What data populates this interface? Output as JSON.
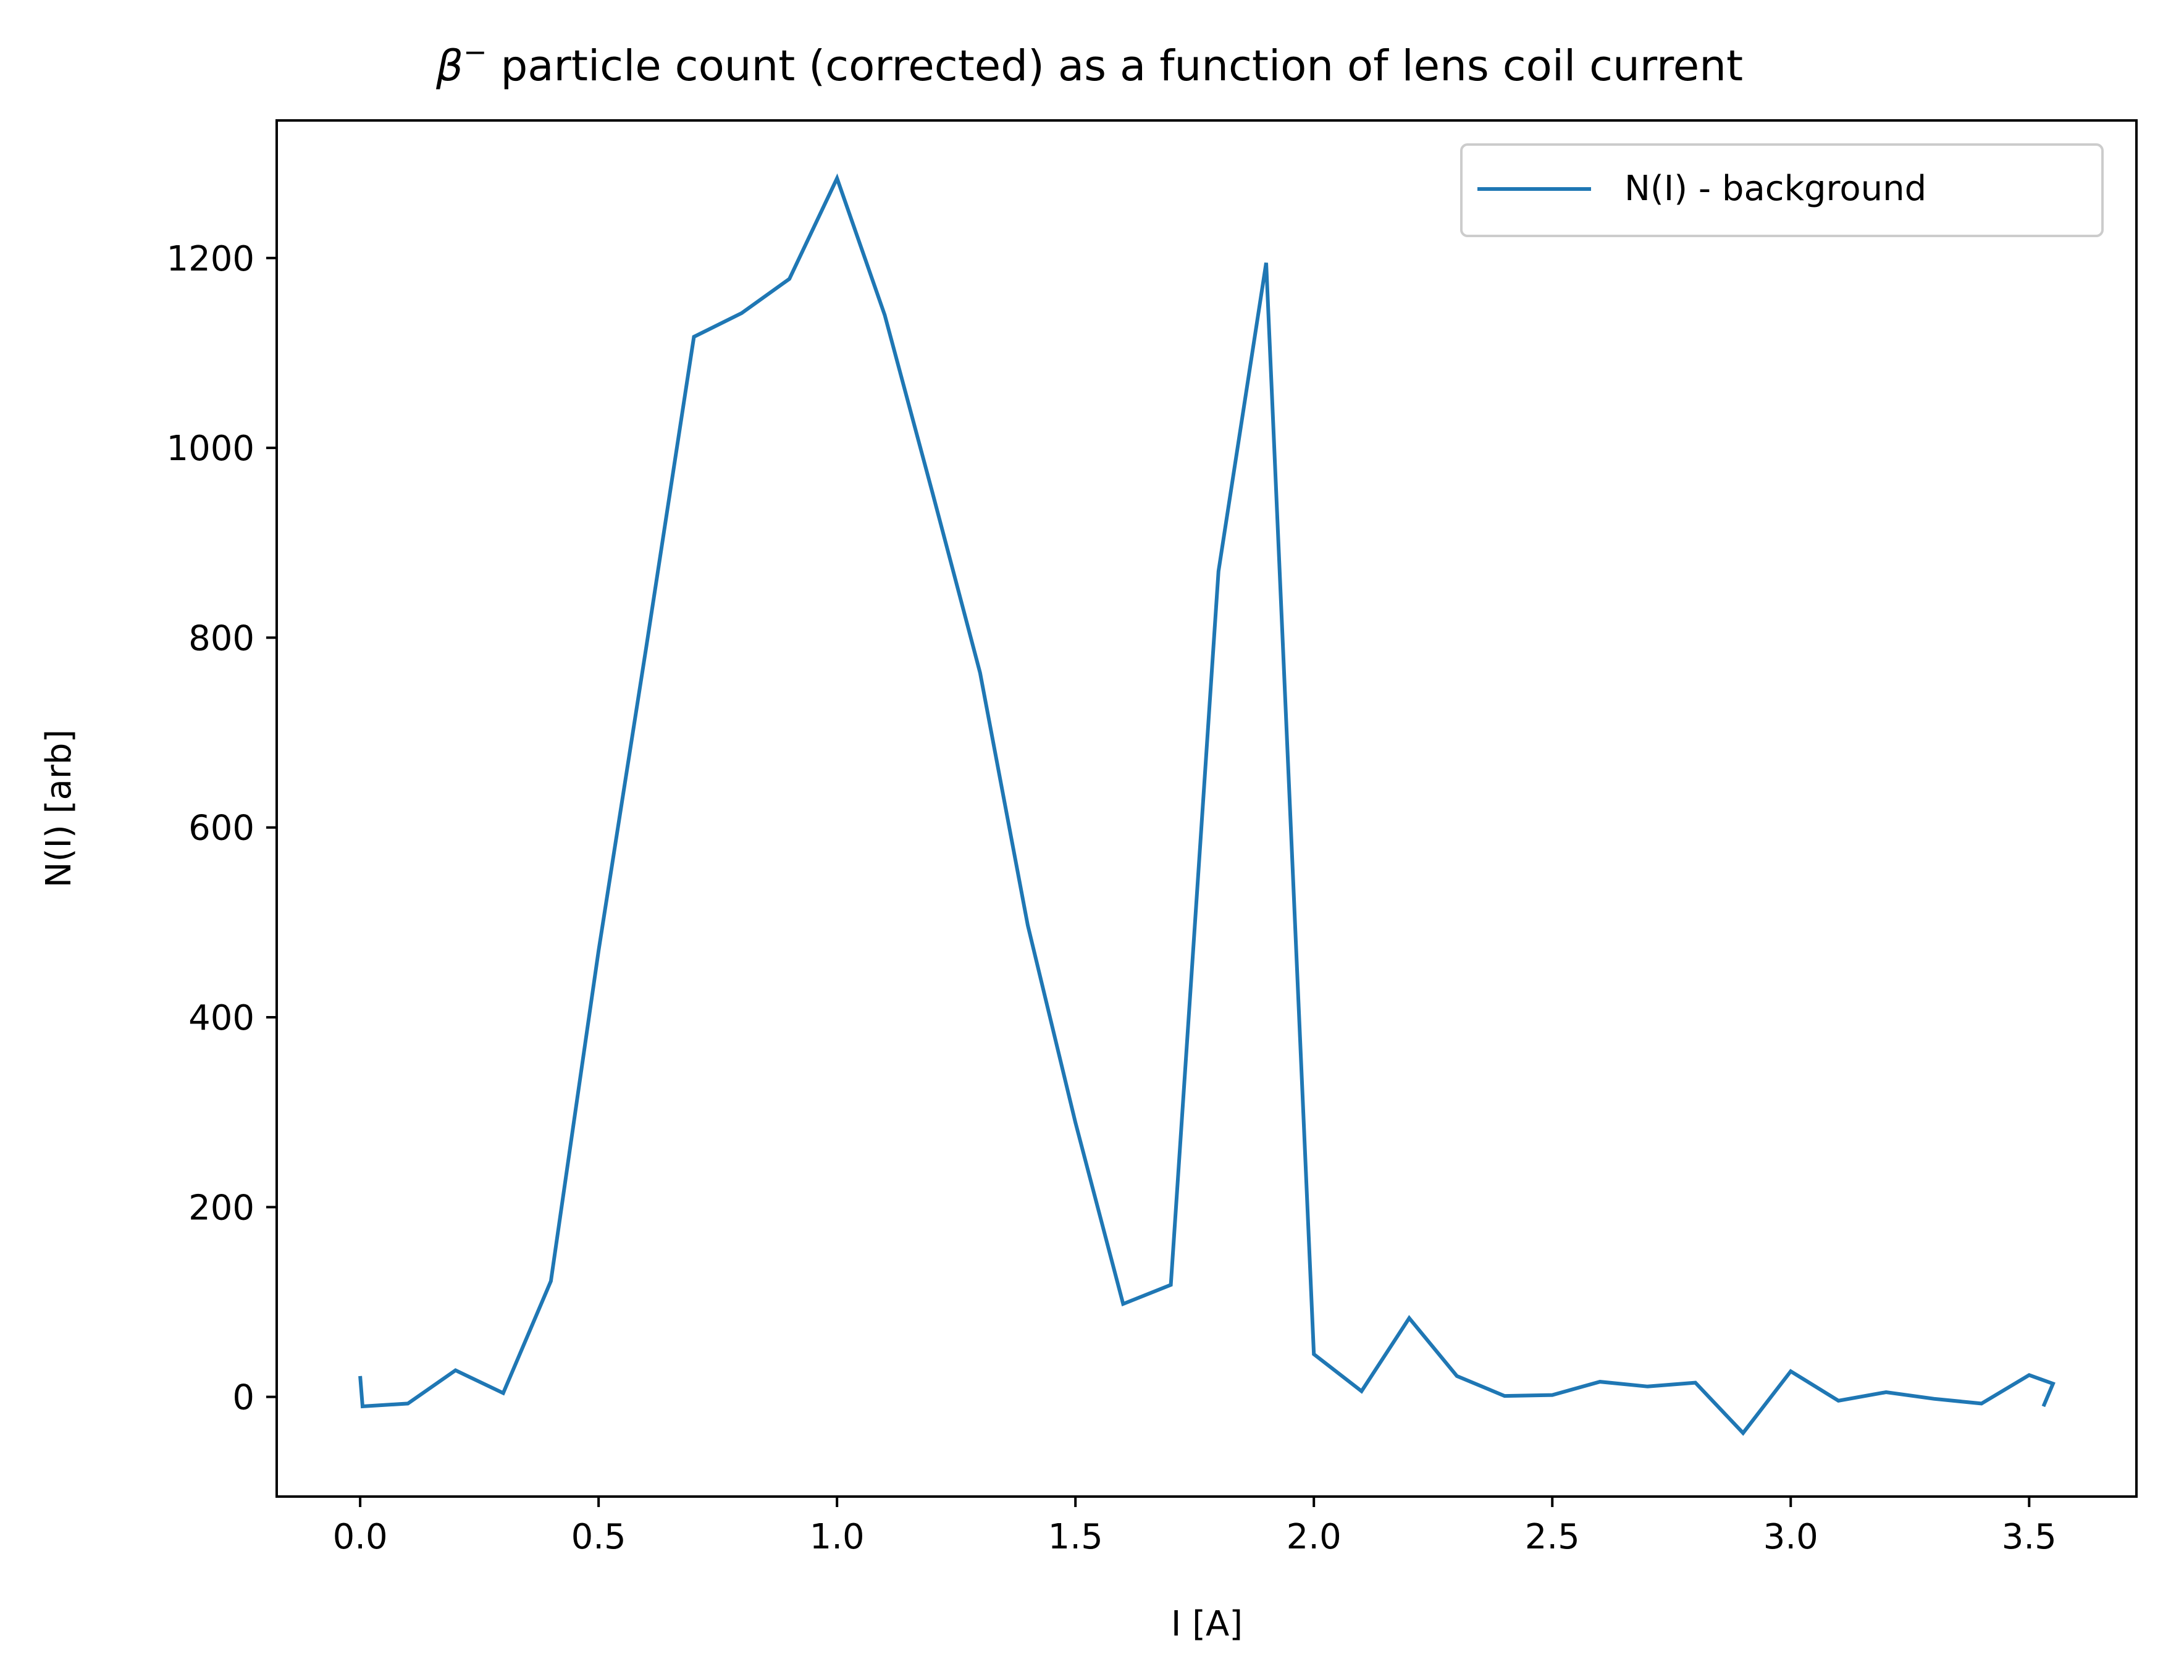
{
  "chart_data": {
    "type": "line",
    "title_symbol": "β",
    "title_superscript": "−",
    "title_rest": " particle count (corrected) as a function of lens coil current",
    "xlabel": "I [A]",
    "ylabel": "N(I) [arb]",
    "xlim": [
      -0.175,
      3.725
    ],
    "ylim": [
      -105,
      1345
    ],
    "xticks": [
      0.0,
      0.5,
      1.0,
      1.5,
      2.0,
      2.5,
      3.0,
      3.5
    ],
    "xtick_labels": [
      "0.0",
      "0.5",
      "1.0",
      "1.5",
      "2.0",
      "2.5",
      "3.0",
      "3.5"
    ],
    "yticks": [
      0,
      200,
      400,
      600,
      800,
      1000,
      1200
    ],
    "ytick_labels": [
      "0",
      "200",
      "400",
      "600",
      "800",
      "1000",
      "1200"
    ],
    "grid": false,
    "legend_position": "upper right",
    "series": [
      {
        "name": "N(I) - background",
        "color": "#1f77b4",
        "x": [
          0.0,
          0.005,
          0.1,
          0.2,
          0.3,
          0.4,
          0.5,
          0.6,
          0.7,
          0.8,
          0.9,
          1.0,
          1.1,
          1.2,
          1.3,
          1.4,
          1.5,
          1.6,
          1.7,
          1.8,
          1.9,
          2.0,
          2.1,
          2.2,
          2.3,
          2.4,
          2.5,
          2.6,
          2.7,
          2.8,
          2.9,
          3.0,
          3.1,
          3.2,
          3.3,
          3.4,
          3.5,
          3.55,
          3.53
        ],
        "y": [
          22,
          -10,
          -7,
          28,
          4,
          122,
          470,
          790,
          1117,
          1142,
          1178,
          1284,
          1140,
          953,
          763,
          497,
          289,
          98,
          118,
          870,
          1195,
          45,
          6,
          83,
          22,
          1,
          2,
          16,
          11,
          15,
          -38,
          27,
          -4,
          5,
          -2,
          -7,
          23,
          14,
          -10
        ]
      }
    ]
  }
}
